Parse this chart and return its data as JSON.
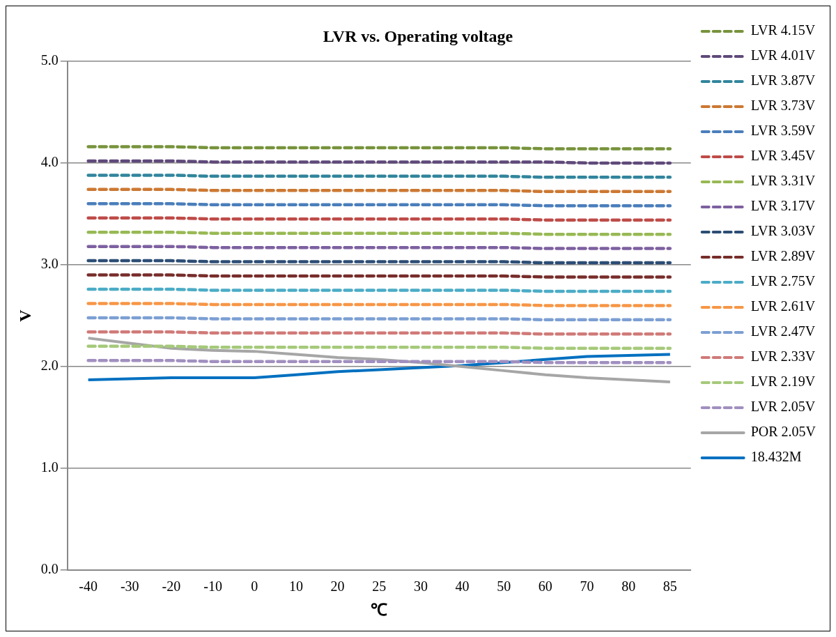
{
  "chart_data": {
    "type": "line",
    "title": "LVR vs. Operating voltage",
    "xlabel": "℃",
    "ylabel": "V",
    "categories": [
      "-40",
      "-30",
      "-20",
      "-10",
      "0",
      "10",
      "20",
      "25",
      "30",
      "40",
      "50",
      "60",
      "70",
      "80",
      "85"
    ],
    "ylim": [
      0,
      5
    ],
    "yticks": [
      {
        "value": 0,
        "label": "0.0"
      },
      {
        "value": 1,
        "label": "1.0"
      },
      {
        "value": 2,
        "label": "2.0"
      },
      {
        "value": 3,
        "label": "3.0"
      },
      {
        "value": 4,
        "label": "4.0"
      },
      {
        "value": 5,
        "label": "5.0"
      }
    ],
    "grid": "y",
    "legend": "right",
    "marker": "none",
    "series": [
      {
        "name": "LVR 4.15V",
        "color": "#77933c",
        "line_style": "dashed",
        "values": [
          4.16,
          4.16,
          4.16,
          4.15,
          4.15,
          4.15,
          4.15,
          4.15,
          4.15,
          4.15,
          4.15,
          4.14,
          4.14,
          4.14,
          4.14
        ]
      },
      {
        "name": "LVR 4.01V",
        "color": "#5f497a",
        "line_style": "dashed",
        "values": [
          4.02,
          4.02,
          4.02,
          4.01,
          4.01,
          4.01,
          4.01,
          4.01,
          4.01,
          4.01,
          4.01,
          4.01,
          4.0,
          4.0,
          4.0
        ]
      },
      {
        "name": "LVR 3.87V",
        "color": "#31859c",
        "line_style": "dashed",
        "values": [
          3.88,
          3.88,
          3.88,
          3.87,
          3.87,
          3.87,
          3.87,
          3.87,
          3.87,
          3.87,
          3.87,
          3.86,
          3.86,
          3.86,
          3.86
        ]
      },
      {
        "name": "LVR 3.73V",
        "color": "#cc7832",
        "line_style": "dashed",
        "values": [
          3.74,
          3.74,
          3.74,
          3.73,
          3.73,
          3.73,
          3.73,
          3.73,
          3.73,
          3.73,
          3.73,
          3.72,
          3.72,
          3.72,
          3.72
        ]
      },
      {
        "name": "LVR 3.59V",
        "color": "#4a7ebb",
        "line_style": "dashed",
        "values": [
          3.6,
          3.6,
          3.6,
          3.59,
          3.59,
          3.59,
          3.59,
          3.59,
          3.59,
          3.59,
          3.59,
          3.58,
          3.58,
          3.58,
          3.58
        ]
      },
      {
        "name": "LVR 3.45V",
        "color": "#be4b48",
        "line_style": "dashed",
        "values": [
          3.46,
          3.46,
          3.46,
          3.45,
          3.45,
          3.45,
          3.45,
          3.45,
          3.45,
          3.45,
          3.45,
          3.44,
          3.44,
          3.44,
          3.44
        ]
      },
      {
        "name": "LVR 3.31V",
        "color": "#98b954",
        "line_style": "dashed",
        "values": [
          3.32,
          3.32,
          3.32,
          3.31,
          3.31,
          3.31,
          3.31,
          3.31,
          3.31,
          3.31,
          3.31,
          3.3,
          3.3,
          3.3,
          3.3
        ]
      },
      {
        "name": "LVR 3.17V",
        "color": "#7d60a0",
        "line_style": "dashed",
        "values": [
          3.18,
          3.18,
          3.18,
          3.17,
          3.17,
          3.17,
          3.17,
          3.17,
          3.17,
          3.17,
          3.17,
          3.16,
          3.16,
          3.16,
          3.16
        ]
      },
      {
        "name": "LVR 3.03V",
        "color": "#2c4d75",
        "line_style": "dashed",
        "values": [
          3.04,
          3.04,
          3.04,
          3.03,
          3.03,
          3.03,
          3.03,
          3.03,
          3.03,
          3.03,
          3.03,
          3.02,
          3.02,
          3.02,
          3.02
        ]
      },
      {
        "name": "LVR 2.89V",
        "color": "#772c2a",
        "line_style": "dashed",
        "values": [
          2.9,
          2.9,
          2.9,
          2.89,
          2.89,
          2.89,
          2.89,
          2.89,
          2.89,
          2.89,
          2.89,
          2.88,
          2.88,
          2.88,
          2.88
        ]
      },
      {
        "name": "LVR 2.75V",
        "color": "#4bacc6",
        "line_style": "dashed",
        "values": [
          2.76,
          2.76,
          2.76,
          2.75,
          2.75,
          2.75,
          2.75,
          2.75,
          2.75,
          2.75,
          2.75,
          2.74,
          2.74,
          2.74,
          2.74
        ]
      },
      {
        "name": "LVR 2.61V",
        "color": "#f79646",
        "line_style": "dashed",
        "values": [
          2.62,
          2.62,
          2.62,
          2.61,
          2.61,
          2.61,
          2.61,
          2.61,
          2.61,
          2.61,
          2.61,
          2.6,
          2.6,
          2.6,
          2.6
        ]
      },
      {
        "name": "LVR 2.47V",
        "color": "#7c9fd3",
        "line_style": "dashed",
        "values": [
          2.48,
          2.48,
          2.48,
          2.47,
          2.47,
          2.47,
          2.47,
          2.47,
          2.47,
          2.47,
          2.47,
          2.46,
          2.46,
          2.46,
          2.46
        ]
      },
      {
        "name": "LVR 2.33V",
        "color": "#d07a78",
        "line_style": "dashed",
        "values": [
          2.34,
          2.34,
          2.34,
          2.33,
          2.33,
          2.33,
          2.33,
          2.33,
          2.33,
          2.33,
          2.33,
          2.32,
          2.32,
          2.32,
          2.32
        ]
      },
      {
        "name": "LVR 2.19V",
        "color": "#a5c97a",
        "line_style": "dashed",
        "values": [
          2.2,
          2.2,
          2.2,
          2.19,
          2.19,
          2.19,
          2.19,
          2.19,
          2.19,
          2.19,
          2.19,
          2.18,
          2.18,
          2.18,
          2.18
        ]
      },
      {
        "name": "LVR 2.05V",
        "color": "#a08fbf",
        "line_style": "dashed",
        "values": [
          2.06,
          2.06,
          2.06,
          2.05,
          2.05,
          2.05,
          2.05,
          2.05,
          2.05,
          2.05,
          2.05,
          2.04,
          2.04,
          2.04,
          2.04
        ]
      },
      {
        "name": "POR 2.05V",
        "color": "#a6a6a6",
        "line_style": "solid",
        "values": [
          2.28,
          2.23,
          2.18,
          2.16,
          2.15,
          2.12,
          2.09,
          2.07,
          2.04,
          2.0,
          1.96,
          1.92,
          1.89,
          1.87,
          1.85
        ]
      },
      {
        "name": "18.432M",
        "color": "#0070c0",
        "line_style": "solid",
        "values": [
          1.87,
          1.88,
          1.89,
          1.89,
          1.89,
          1.92,
          1.95,
          1.97,
          1.99,
          2.01,
          2.04,
          2.07,
          2.1,
          2.11,
          2.12
        ]
      }
    ]
  }
}
